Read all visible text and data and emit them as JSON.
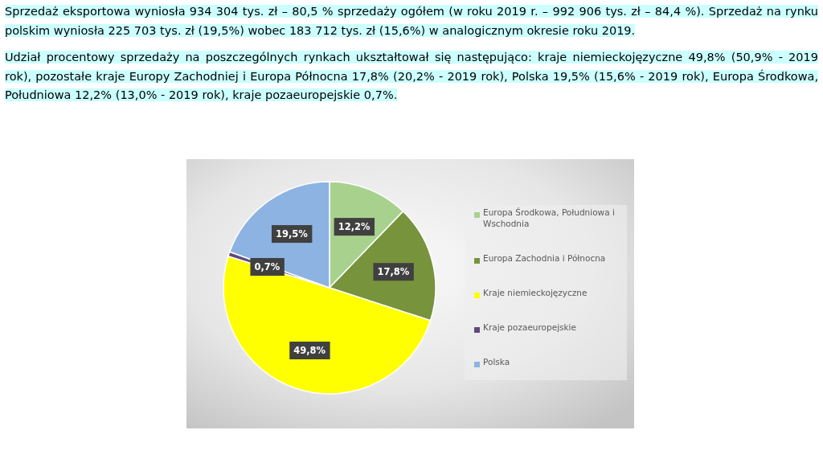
{
  "chart_data": {
    "type": "pie",
    "annotations": [
      "Sprzedaż eksportowa wyniosła 934 304 tys. zł – 80,5 % sprzedaży ogółem (w roku 2019 r. – 992 906 tys. zł – 84,4 %).   Sprzedaż na rynku polskim wyniosła 225 703 tys. zł (19,5%) wobec 183 712 tys. zł (15,6%) w analogicznym okresie roku 2019.",
      "Udział procentowy sprzedaży na poszczególnych rynkach ukształtował się następująco: kraje niemieckojęzyczne 49,8% (50,9% - 2019 rok), pozostałe kraje Europy Zachodniej i Europa Północna 17,8% (20,2%  - 2019 rok), Polska 19,5% (15,6% - 2019 rok), Europa Środkowa, Południowa 12,2% (13,0% - 2019 rok), kraje pozaeuropejskie 0,7%."
    ],
    "categories": [
      "Europa Środkowa, Południowa i Wschodnia",
      "Europa Zachodnia i Północna",
      "Kraje niemieckojęzyczne",
      "Kraje pozaeuropejskie",
      "Polska"
    ],
    "values": [
      12.2,
      17.8,
      49.8,
      0.7,
      19.5
    ],
    "colors": [
      "#a9d18e",
      "#77933c",
      "#ffff00",
      "#604a7b",
      "#8db3e2"
    ],
    "value_labels": [
      "12,2%",
      "17,8%",
      "49,8%",
      "0,7%",
      "19,5%"
    ],
    "legend": "right"
  }
}
